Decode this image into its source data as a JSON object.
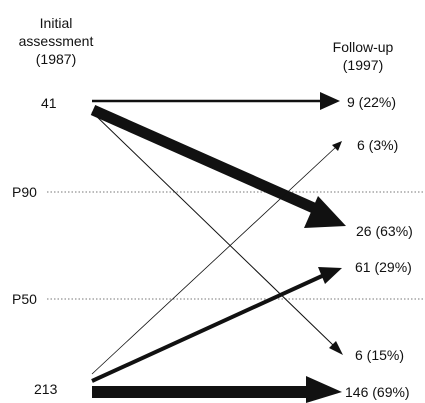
{
  "header": {
    "left_lines": [
      "Initial",
      "assessment",
      "(1987)"
    ],
    "right_lines": [
      "Follow-up",
      "(1997)"
    ]
  },
  "reference_lines": [
    {
      "label": "P90"
    },
    {
      "label": "P50"
    }
  ],
  "initial_groups": [
    {
      "id": "high",
      "label": "41"
    },
    {
      "id": "low",
      "label": "213"
    }
  ],
  "followup_outcomes": [
    {
      "from": "high",
      "label": "9 (22%)",
      "count": 9,
      "percent": 22
    },
    {
      "from": "low",
      "label": "6 (3%)",
      "count": 6,
      "percent": 3
    },
    {
      "from": "high",
      "label": "26 (63%)",
      "count": 26,
      "percent": 63
    },
    {
      "from": "low",
      "label": "61 (29%)",
      "count": 61,
      "percent": 29
    },
    {
      "from": "high",
      "label": "6 (15%)",
      "count": 6,
      "percent": 15
    },
    {
      "from": "low",
      "label": "146 (69%)",
      "count": 146,
      "percent": 69
    }
  ],
  "colors": {
    "ink": "#111111",
    "dotted": "#777777"
  }
}
